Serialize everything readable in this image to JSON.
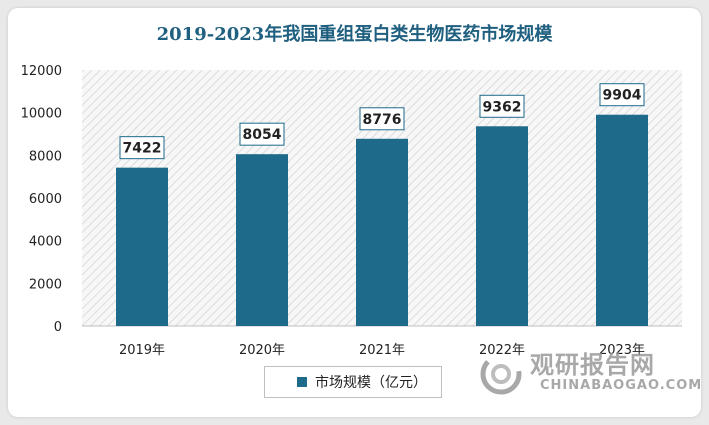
{
  "chart_data": {
    "type": "bar",
    "title": "2019-2023年我国重组蛋白类生物医药市场规模",
    "categories": [
      "2019年",
      "2020年",
      "2021年",
      "2022年",
      "2023年"
    ],
    "series": [
      {
        "name": "市场规模（亿元）",
        "values": [
          7422,
          8054,
          8776,
          9362,
          9904
        ]
      }
    ],
    "ylim": [
      0,
      12000
    ],
    "yticks": [
      0,
      2000,
      4000,
      6000,
      8000,
      10000,
      12000
    ],
    "grid": false,
    "legend_position": "bottom",
    "colors": {
      "bar": "#1d6a8a",
      "title": "#1f5f7f",
      "label_border": "#1d6a8a"
    }
  },
  "watermark": {
    "brand_cn": "观研报告网",
    "brand_en": "CHINABAOGAO.COM",
    "logo_icon": "chinabaogao-logo-icon"
  }
}
